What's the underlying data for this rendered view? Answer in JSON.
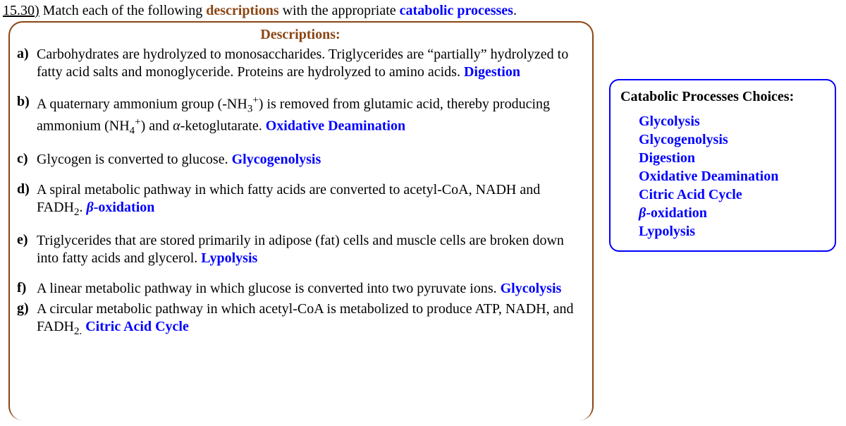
{
  "colors": {
    "brown": "#8b4513",
    "blue": "#0000ff",
    "text": "#000000",
    "background": "#ffffff"
  },
  "typography": {
    "font_family": "Times New Roman",
    "base_fontsize_pt": 15
  },
  "question": {
    "number": "15.30)",
    "prefix": "Match each of the following ",
    "word1": "descriptions",
    "mid": " with the appropriate ",
    "word2": "catabolic processes",
    "suffix": "."
  },
  "descriptions": {
    "title": "Descriptions:",
    "items": {
      "a": {
        "label": "a)",
        "text": "Carbohydrates are hydrolyzed to monosaccharides.  Triglycerides are “partially” hydrolyzed to fatty acid salts and monoglyceride.  Proteins are hydrolyzed to amino acids.  ",
        "answer": "Digestion"
      },
      "b": {
        "label": "b)",
        "pre": "A quaternary ammonium group (-NH",
        "sub1": "3",
        "sup1": "+",
        "mid1": ") is removed from glutamic acid, thereby producing ammonium (NH",
        "sub2": "4",
        "sup2": "+",
        "mid2": ") and ",
        "alpha": "α",
        "post": "-ketoglutarate.  ",
        "answer": "Oxidative Deamination"
      },
      "c": {
        "label": "c)",
        "text": "Glycogen is converted to glucose. ",
        "answer": "Glycogenolysis"
      },
      "d": {
        "label": "d)",
        "pre": "A spiral metabolic pathway in which fatty acids are converted to acetyl-CoA, NADH and FADH",
        "sub": "2",
        "post": ". ",
        "answer_beta": "β",
        "answer_rest": "-oxidation"
      },
      "e": {
        "label": "e)",
        "text": "Triglycerides that are stored primarily in adipose (fat) cells and muscle cells are broken down into fatty acids and glycerol. ",
        "answer": "Lypolysis"
      },
      "f": {
        "label": "f)",
        "text": "A linear metabolic pathway in which glucose is converted into two pyruvate ions. ",
        "answer": "Glycolysis"
      },
      "g": {
        "label": "g)",
        "pre": "A circular metabolic pathway in which acetyl-CoA is metabolized to produce ATP, NADH, and FADH",
        "sub": "2.",
        "post": " ",
        "answer": "Citric Acid Cycle"
      }
    }
  },
  "choices": {
    "title": "Catabolic Processes Choices:",
    "items": {
      "0": "Glycolysis",
      "1": "Glycogenolysis",
      "2": "Digestion",
      "3": "Oxidative Deamination",
      "4": "Citric Acid Cycle",
      "5_beta": "β",
      "5_rest": "-oxidation",
      "6": "Lypolysis"
    }
  }
}
